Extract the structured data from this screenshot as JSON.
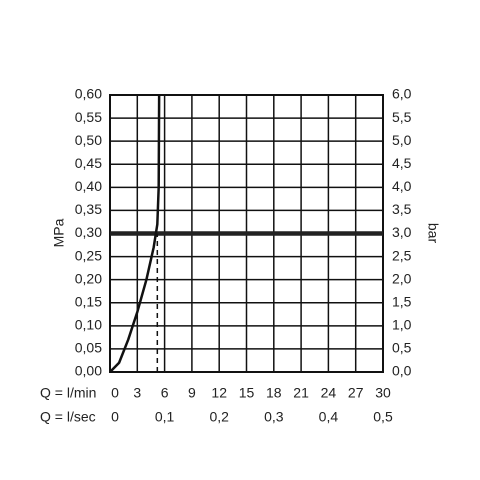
{
  "chart_data": {
    "type": "line",
    "y_label": "MPa",
    "y2_label": "bar",
    "x_label": "Q = l/min",
    "x2_label": "Q = l/sec",
    "x": [
      0,
      1,
      2,
      3,
      4,
      4.8,
      5.2,
      5.35,
      5.4
    ],
    "series": [
      {
        "color": "#111111",
        "values": [
          0,
          0.02,
          0.07,
          0.13,
          0.2,
          0.27,
          0.32,
          0.4,
          0.6
        ]
      }
    ],
    "xlim": [
      0,
      30
    ],
    "xticks": [
      0,
      3,
      6,
      9,
      12,
      15,
      18,
      21,
      24,
      27,
      30
    ],
    "x2lim": [
      0,
      0.5
    ],
    "x2ticks": [
      0,
      {
        "value": 0.1,
        "label": "0,1"
      },
      {
        "value": 0.2,
        "label": "0,2"
      },
      {
        "value": 0.3,
        "label": "0,3"
      },
      {
        "value": 0.4,
        "label": "0,4"
      },
      {
        "value": 0.5,
        "label": "0,5"
      }
    ],
    "ylim": [
      0,
      0.6
    ],
    "yticks": [
      {
        "value": 0,
        "label": "0,00"
      },
      {
        "value": 0.05,
        "label": "0,05"
      },
      {
        "value": 0.1,
        "label": "0,10"
      },
      {
        "value": 0.15,
        "label": "0,15"
      },
      {
        "value": 0.2,
        "label": "0,20"
      },
      {
        "value": 0.25,
        "label": "0,25"
      },
      {
        "value": 0.3,
        "label": "0,30"
      },
      {
        "value": 0.35,
        "label": "0,35"
      },
      {
        "value": 0.4,
        "label": "0,40"
      },
      {
        "value": 0.45,
        "label": "0,45"
      },
      {
        "value": 0.5,
        "label": "0,50"
      },
      {
        "value": 0.55,
        "label": "0,55"
      },
      {
        "value": 0.6,
        "label": "0,60"
      }
    ],
    "y2lim": [
      0,
      6
    ],
    "y2ticks": [
      {
        "value": 0,
        "label": "0,0"
      },
      {
        "value": 0.5,
        "label": "0,5"
      },
      {
        "value": 1,
        "label": "1,0"
      },
      {
        "value": 1.5,
        "label": "1,5"
      },
      {
        "value": 2,
        "label": "2,0"
      },
      {
        "value": 2.5,
        "label": "2,5"
      },
      {
        "value": 3,
        "label": "3,0"
      },
      {
        "value": 3.5,
        "label": "3,5"
      },
      {
        "value": 4,
        "label": "4,0"
      },
      {
        "value": 4.5,
        "label": "4,5"
      },
      {
        "value": 5,
        "label": "5,0"
      },
      {
        "value": 5.5,
        "label": "5,5"
      },
      {
        "value": 6,
        "label": "6,0"
      }
    ],
    "hline": 0.3,
    "vline": 5.2,
    "grid": true
  }
}
